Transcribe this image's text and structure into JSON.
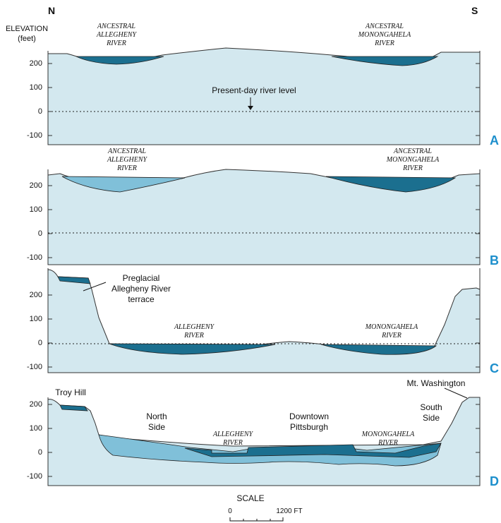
{
  "compass": {
    "north": "N",
    "south": "S"
  },
  "axis_title": {
    "line1": "ELEVATION",
    "line2": "(feet)"
  },
  "panels": [
    {
      "letter": "A",
      "ticks": [
        "200",
        "100",
        "0",
        "-100"
      ],
      "labels": {
        "left_river": [
          "ANCESTRAL",
          "ALLEGHENY",
          "RIVER"
        ],
        "right_river": [
          "ANCESTRAL",
          "MONONGAHELA",
          "RIVER"
        ],
        "note": "Present-day river level"
      }
    },
    {
      "letter": "B",
      "ticks": [
        "200",
        "100",
        "0",
        "-100"
      ],
      "labels": {
        "left_river": [
          "ANCESTRAL",
          "ALLEGHENY",
          "RIVER"
        ],
        "right_river": [
          "ANCESTRAL",
          "MONONGAHELA",
          "RIVER"
        ]
      }
    },
    {
      "letter": "C",
      "ticks": [
        "200",
        "100",
        "0",
        "-100"
      ],
      "labels": {
        "left_river": [
          "ALLEGHENY",
          "RIVER"
        ],
        "right_river": [
          "MONONGAHELA",
          "RIVER"
        ],
        "note": [
          "Preglacial",
          "Allegheny River",
          "terrace"
        ]
      }
    },
    {
      "letter": "D",
      "ticks": [
        "200",
        "100",
        "0",
        "-100"
      ],
      "labels": {
        "left_river": [
          "ALLEGHENY",
          "RIVER"
        ],
        "right_river": [
          "MONONGAHELA",
          "RIVER"
        ],
        "troy_hill": "Troy Hill",
        "north_side": [
          "North",
          "Side"
        ],
        "downtown": [
          "Downtown",
          "Pittsburgh"
        ],
        "south_side": [
          "South",
          "Side"
        ],
        "mt_washington": "Mt. Washington"
      }
    }
  ],
  "scale": {
    "title": "SCALE",
    "start": "0",
    "end": "1200 FT"
  }
}
